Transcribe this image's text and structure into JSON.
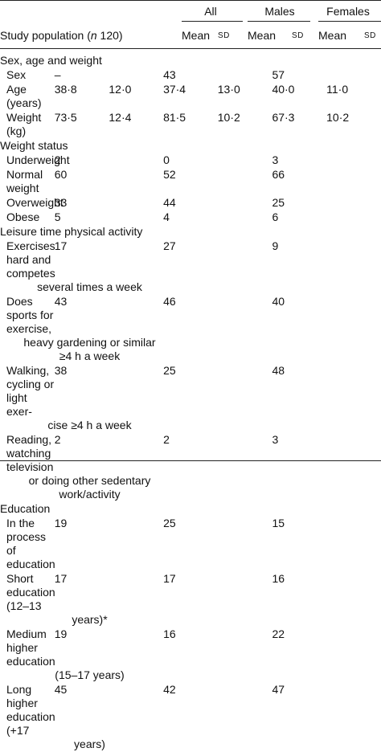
{
  "header": {
    "groups": [
      "All",
      "Males",
      "Females"
    ],
    "population_label_prefix": "Study population (",
    "population_label_italic": "n",
    "population_label_suffix": " 120)",
    "mean_label": "Mean",
    "sd_label": "SD"
  },
  "sections": [
    {
      "title": "Sex, age and weight",
      "rows": [
        {
          "label": "Sex",
          "values": [
            "–",
            "",
            "43",
            "",
            "57",
            ""
          ]
        },
        {
          "label": "Age (years)",
          "values": [
            "38·8",
            "12·0",
            "37·4",
            "13·0",
            "40·0",
            "11·0"
          ]
        },
        {
          "label": "Weight (kg)",
          "values": [
            "73·5",
            "12·4",
            "81·5",
            "10·2",
            "67·3",
            "10·2"
          ]
        }
      ]
    },
    {
      "title": "Weight status",
      "rows": [
        {
          "label": "Underweight",
          "values": [
            "2",
            "",
            "0",
            "",
            "3",
            ""
          ]
        },
        {
          "label": "Normal weight",
          "values": [
            "60",
            "",
            "52",
            "",
            "66",
            ""
          ]
        },
        {
          "label": "Overweight",
          "values": [
            "33",
            "",
            "44",
            "",
            "25",
            ""
          ]
        },
        {
          "label": "Obese",
          "values": [
            "5",
            "",
            "4",
            "",
            "6",
            ""
          ]
        }
      ]
    },
    {
      "title": "Leisure time physical activity",
      "rows": [
        {
          "label_lines": [
            "Exercises hard and competes",
            "several times a week"
          ],
          "values": [
            "17",
            "",
            "27",
            "",
            "9",
            ""
          ]
        },
        {
          "label_lines": [
            "Does sports for exercise,",
            "heavy gardening or similar",
            "≥4 h a week"
          ],
          "values": [
            "43",
            "",
            "46",
            "",
            "40",
            ""
          ]
        },
        {
          "label_lines": [
            "Walking, cycling or light exer-",
            "cise ≥4 h a week"
          ],
          "values": [
            "38",
            "",
            "25",
            "",
            "48",
            ""
          ]
        },
        {
          "label_lines": [
            "Reading, watching television",
            "or doing other sedentary",
            "work/activity"
          ],
          "values": [
            "2",
            "",
            "2",
            "",
            "3",
            ""
          ]
        }
      ]
    },
    {
      "title": "Education",
      "rows": [
        {
          "label_lines": [
            "In the process of education"
          ],
          "values": [
            "19",
            "",
            "25",
            "",
            "15",
            ""
          ]
        },
        {
          "label_lines": [
            "Short education (12–13",
            "years)*"
          ],
          "values": [
            "17",
            "",
            "17",
            "",
            "16",
            ""
          ]
        },
        {
          "label_lines": [
            "Medium higher education",
            "(15–17 years)"
          ],
          "values": [
            "19",
            "",
            "16",
            "",
            "22",
            ""
          ]
        },
        {
          "label_lines": [
            "Long higher education (+17",
            "years)"
          ],
          "values": [
            "45",
            "",
            "42",
            "",
            "47",
            ""
          ]
        }
      ]
    }
  ]
}
